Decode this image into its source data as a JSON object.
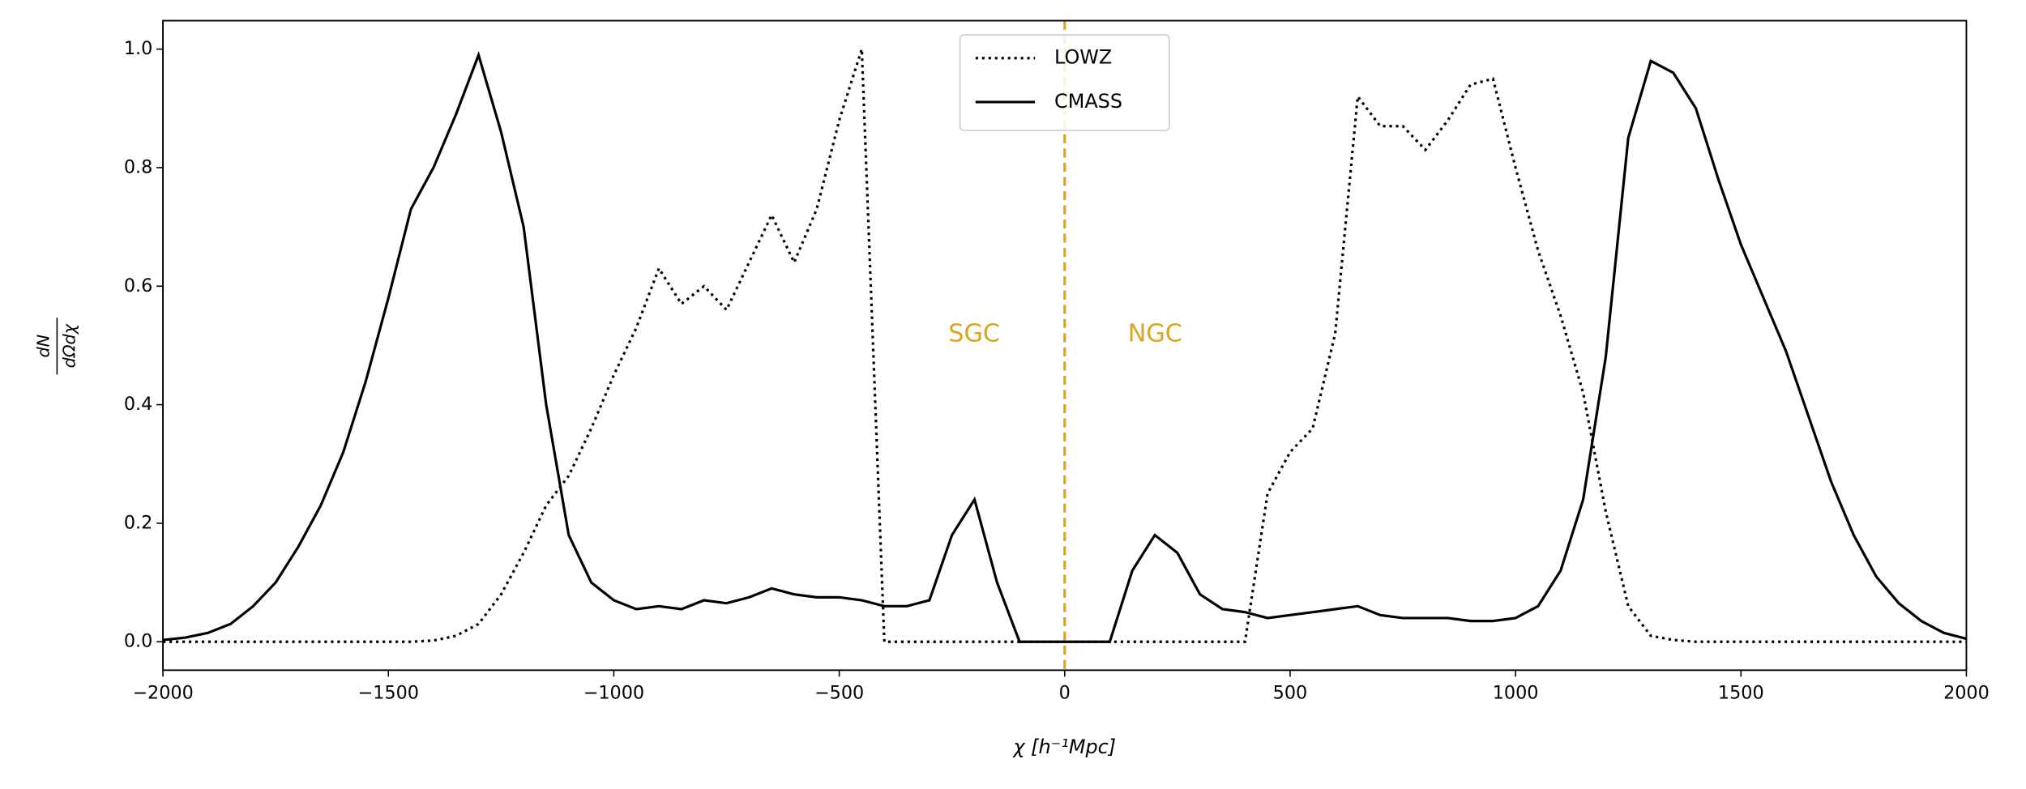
{
  "chart_data": {
    "type": "line",
    "xlabel": "χ [h⁻¹Mpc]",
    "ylabel_numerator": "dN",
    "ylabel_denominator": "dΩdχ",
    "x": [
      -2000,
      -1950,
      -1900,
      -1850,
      -1800,
      -1750,
      -1700,
      -1650,
      -1600,
      -1550,
      -1500,
      -1450,
      -1400,
      -1350,
      -1300,
      -1250,
      -1200,
      -1150,
      -1100,
      -1050,
      -1000,
      -950,
      -900,
      -850,
      -800,
      -750,
      -700,
      -650,
      -600,
      -550,
      -500,
      -450,
      -400,
      -350,
      -300,
      -250,
      -200,
      -150,
      -100,
      -50,
      0,
      50,
      100,
      150,
      200,
      250,
      300,
      350,
      400,
      450,
      500,
      550,
      600,
      650,
      700,
      750,
      800,
      850,
      900,
      950,
      1000,
      1050,
      1100,
      1150,
      1200,
      1250,
      1300,
      1350,
      1400,
      1450,
      1500,
      1550,
      1600,
      1650,
      1700,
      1750,
      1800,
      1850,
      1900,
      1950,
      2000
    ],
    "series": [
      {
        "name": "LOWZ",
        "color": "#000000",
        "style": "dotted",
        "values": [
          0,
          0,
          0,
          0,
          0,
          0,
          0,
          0,
          0,
          0,
          0,
          0,
          0.002,
          0.01,
          0.03,
          0.08,
          0.15,
          0.23,
          0.28,
          0.36,
          0.45,
          0.53,
          0.63,
          0.57,
          0.6,
          0.56,
          0.64,
          0.72,
          0.64,
          0.73,
          0.88,
          1.0,
          0,
          0,
          0,
          0,
          0,
          0,
          0,
          0,
          0,
          0,
          0,
          0,
          0,
          0,
          0,
          0,
          0,
          0.25,
          0.32,
          0.36,
          0.52,
          0.92,
          0.87,
          0.87,
          0.83,
          0.88,
          0.94,
          0.95,
          0.8,
          0.66,
          0.55,
          0.42,
          0.22,
          0.06,
          0.01,
          0.003,
          0,
          0,
          0,
          0,
          0,
          0,
          0,
          0,
          0,
          0,
          0,
          0,
          0
        ]
      },
      {
        "name": "CMASS",
        "color": "#000000",
        "style": "solid",
        "values": [
          0.003,
          0.007,
          0.015,
          0.03,
          0.06,
          0.1,
          0.16,
          0.23,
          0.32,
          0.44,
          0.58,
          0.73,
          0.8,
          0.89,
          0.99,
          0.86,
          0.7,
          0.4,
          0.18,
          0.1,
          0.07,
          0.055,
          0.06,
          0.055,
          0.07,
          0.065,
          0.075,
          0.09,
          0.08,
          0.075,
          0.075,
          0.07,
          0.06,
          0.06,
          0.07,
          0.18,
          0.24,
          0.1,
          0,
          0,
          0,
          0,
          0,
          0.12,
          0.18,
          0.15,
          0.08,
          0.055,
          0.05,
          0.04,
          0.045,
          0.05,
          0.055,
          0.06,
          0.045,
          0.04,
          0.04,
          0.04,
          0.035,
          0.035,
          0.04,
          0.06,
          0.12,
          0.24,
          0.48,
          0.85,
          0.98,
          0.96,
          0.9,
          0.78,
          0.67,
          0.58,
          0.49,
          0.38,
          0.27,
          0.18,
          0.11,
          0.065,
          0.035,
          0.015,
          0.005
        ]
      }
    ],
    "vline": {
      "x": 0,
      "color": "#DAA520"
    },
    "annotations": [
      "SGC",
      "NGC"
    ],
    "xlim": [
      -2000,
      2000
    ],
    "ylim": [
      -0.048,
      1.048
    ],
    "xticks": [
      {
        "value": -2000,
        "label": "−2000"
      },
      {
        "value": -1500,
        "label": "−1500"
      },
      {
        "value": -1000,
        "label": "−1000"
      },
      {
        "value": -500,
        "label": "−500"
      },
      0,
      500,
      1000,
      1500,
      2000
    ],
    "yticks": [
      {
        "value": 0,
        "label": "0.0"
      },
      {
        "value": 0.2,
        "label": "0.2"
      },
      {
        "value": 0.4,
        "label": "0.4"
      },
      {
        "value": 0.6,
        "label": "0.6"
      },
      {
        "value": 0.8,
        "label": "0.8"
      },
      {
        "value": 1,
        "label": "1.0"
      }
    ],
    "legend": "upper center"
  }
}
